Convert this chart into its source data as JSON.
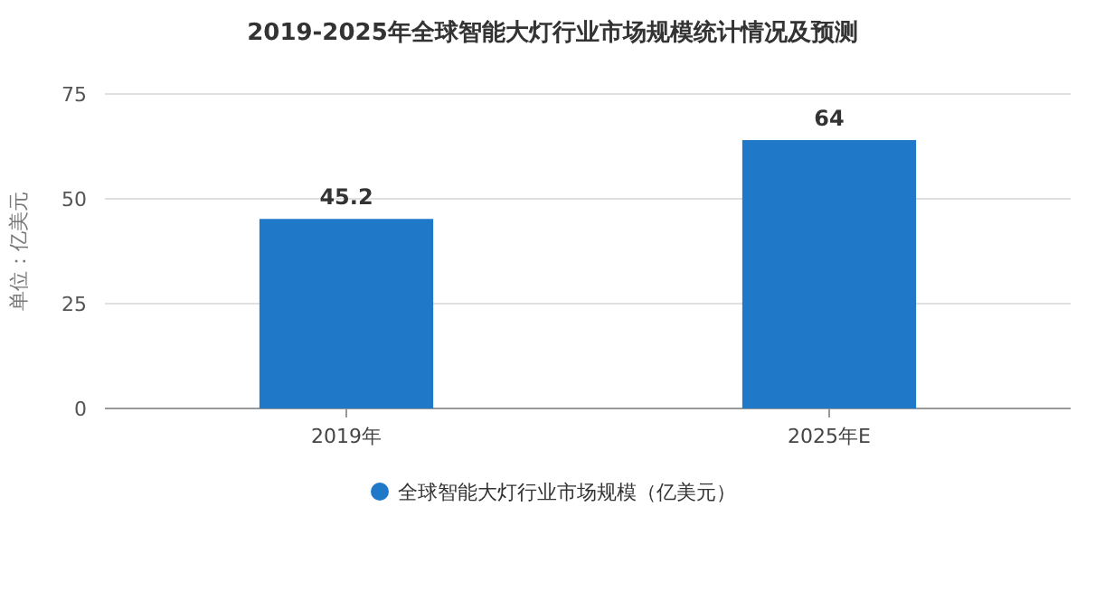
{
  "chart_data": {
    "type": "bar",
    "title": "2019-2025年全球智能大灯行业市场规模统计情况及预测",
    "ylabel": "单位：亿美元",
    "categories": [
      "2019年",
      "2025年E"
    ],
    "series": [
      {
        "name": "全球智能大灯行业市场规模（亿美元）",
        "color": "#1f78c8",
        "values": [
          45.2,
          64
        ]
      }
    ],
    "ylim": [
      0,
      75
    ],
    "yticks": [
      0,
      25,
      50,
      75
    ],
    "grid": "y",
    "legend": "bottom",
    "data_labels": true
  }
}
